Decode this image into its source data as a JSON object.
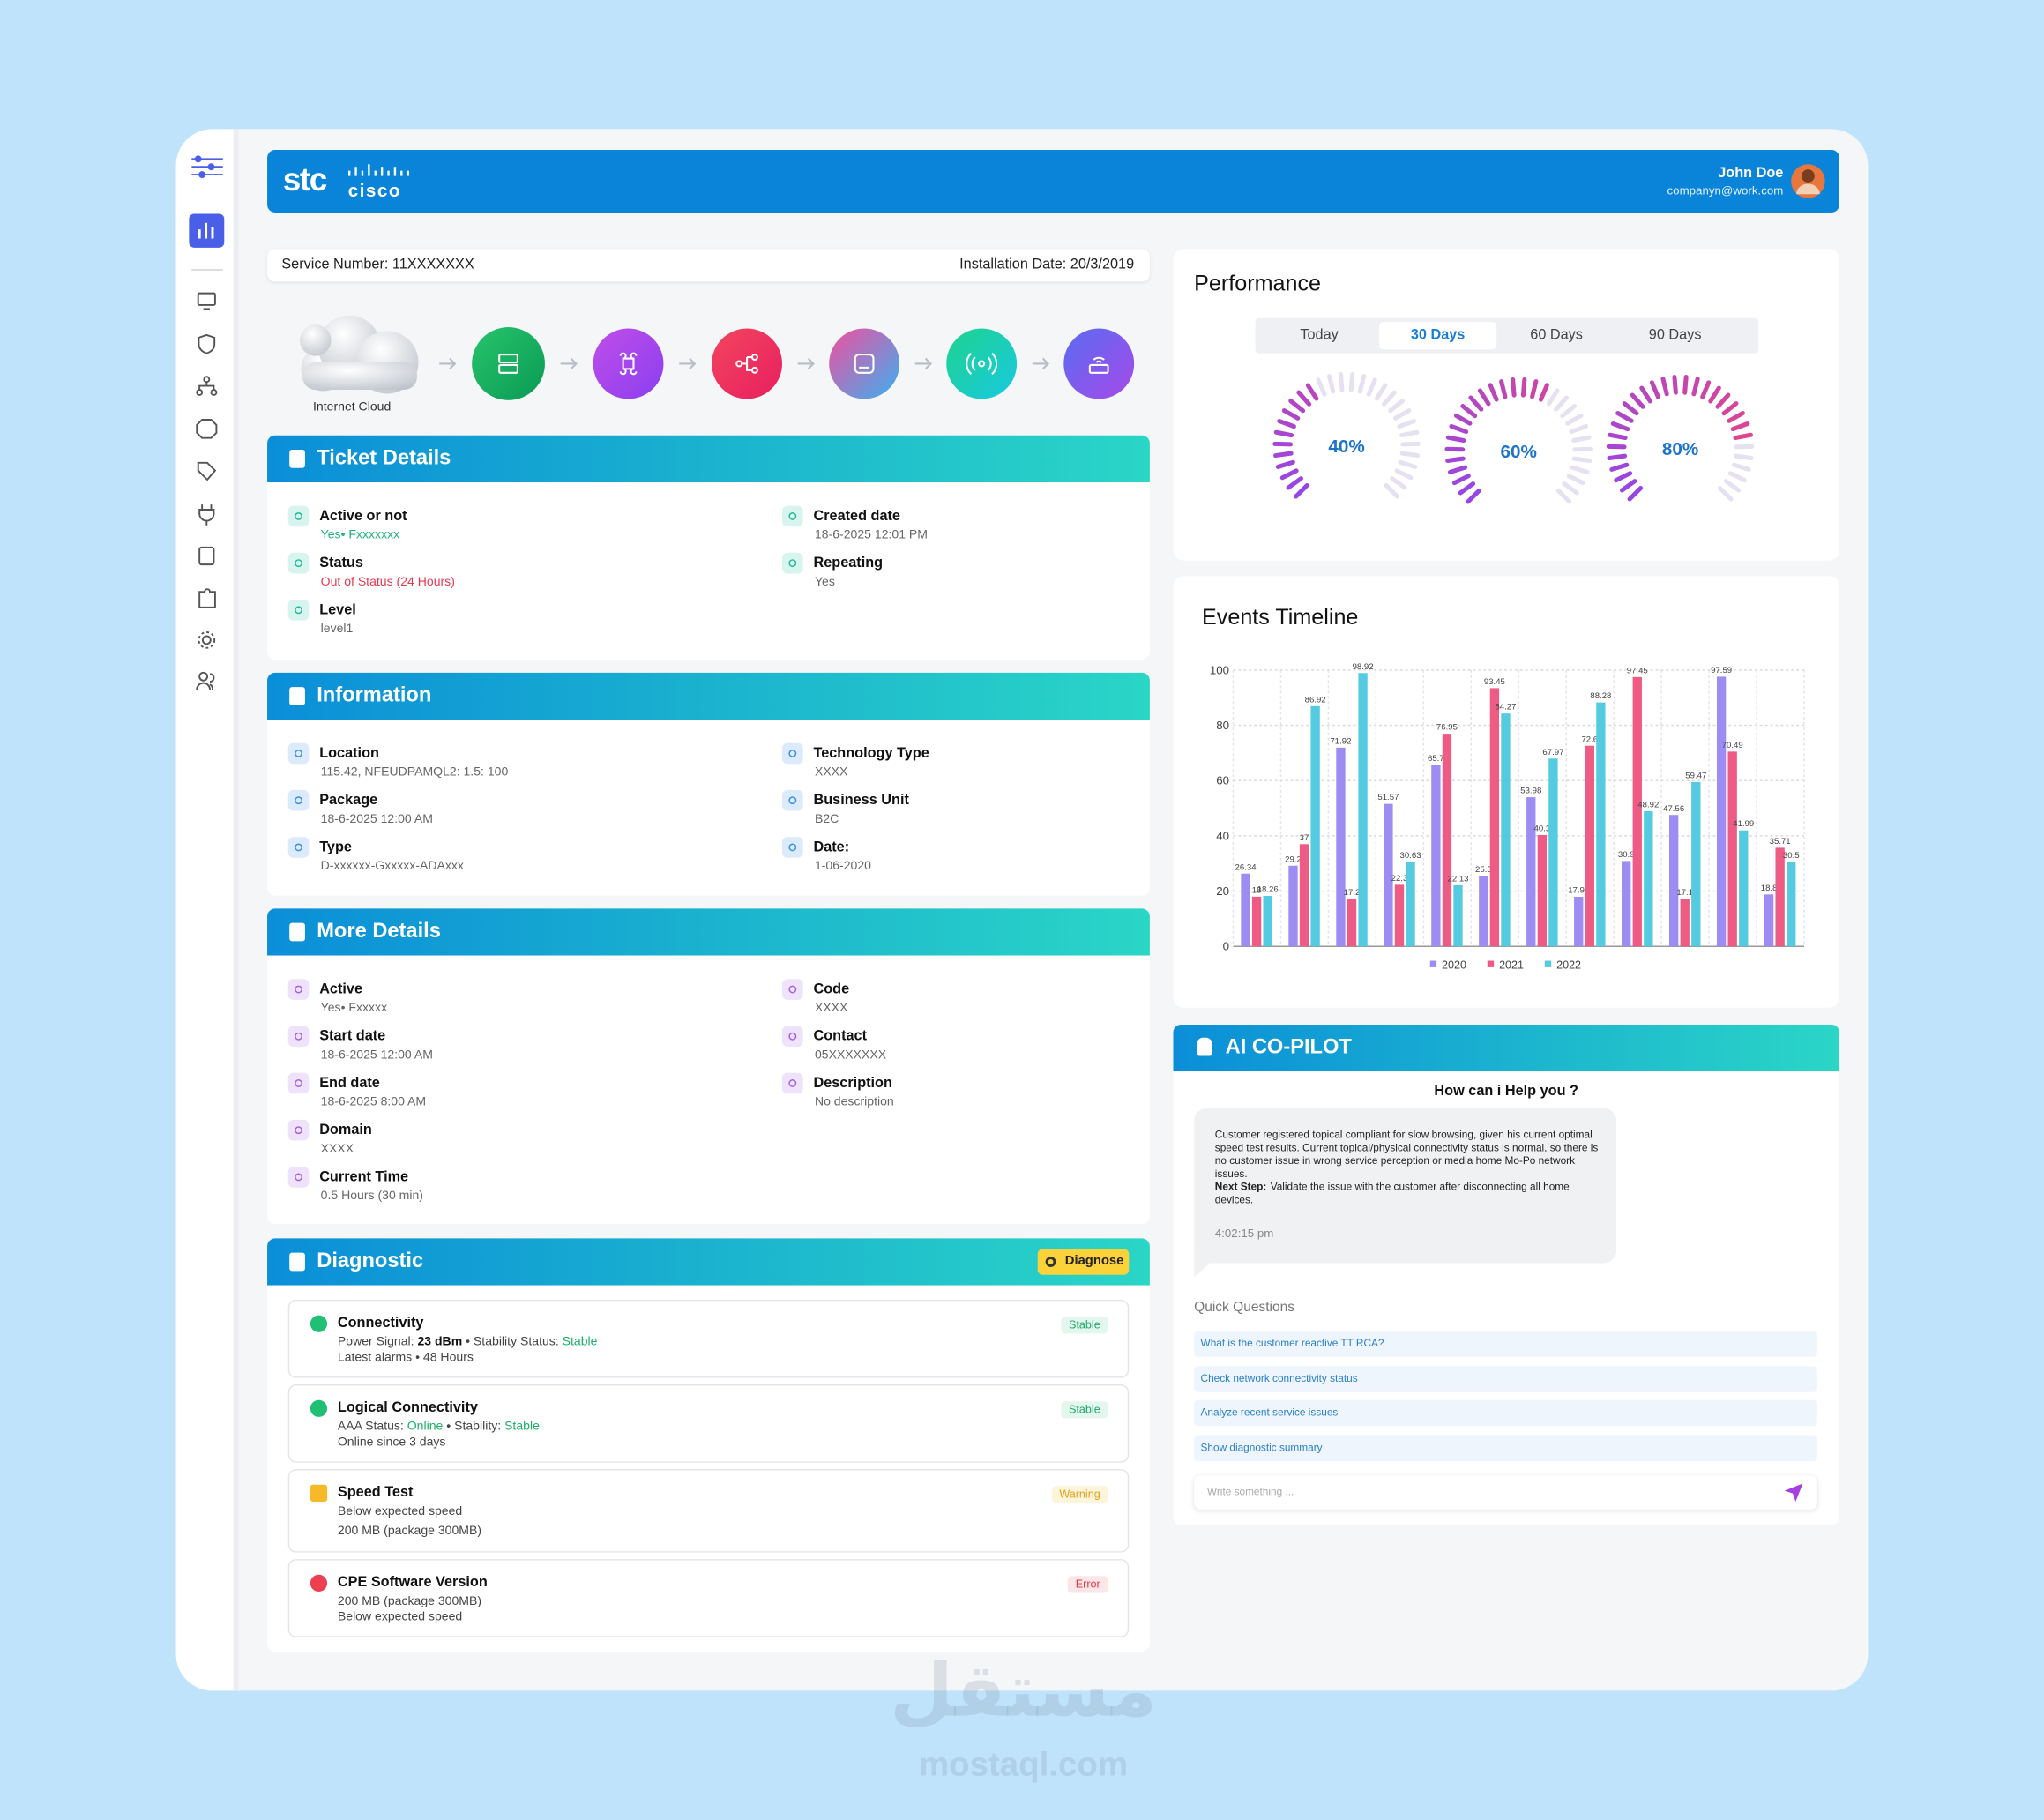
{
  "header": {
    "brand": "stc",
    "partner": "cisco",
    "user_name": "John Doe",
    "user_email": "companyn@work.com"
  },
  "service": {
    "number": "Service Number: 11XXXXXXX",
    "installation": "Installation Date: 20/3/2019"
  },
  "topology": {
    "cloud_label": "Internet Cloud"
  },
  "ticket": {
    "title": "Ticket Details",
    "left": [
      {
        "label": "Active or not",
        "value": "Yes• Fxxxxxxx",
        "color": "#1fb37a"
      },
      {
        "label": "Status",
        "value": "Out of Status (24 Hours)",
        "color": "#e53950"
      },
      {
        "label": "Level",
        "value": "level1"
      }
    ],
    "right": [
      {
        "label": "Created date",
        "value": "18-6-2025 12:01 PM"
      },
      {
        "label": "Repeating",
        "value": "Yes"
      }
    ]
  },
  "information": {
    "title": "Information",
    "left": [
      {
        "label": "Location",
        "value": "115.42, NFEUDPAMQL2: 1.5: 100"
      },
      {
        "label": "Package",
        "value": "18-6-2025 12:00 AM"
      },
      {
        "label": "Type",
        "value": "D-xxxxxx-Gxxxxx-ADAxxx"
      }
    ],
    "right": [
      {
        "label": "Technology Type",
        "value": "XXXX"
      },
      {
        "label": "Business Unit",
        "value": "B2C"
      },
      {
        "label": "Date:",
        "value": "1-06-2020"
      }
    ]
  },
  "more_details": {
    "title": "More Details",
    "left": [
      {
        "label": "Active",
        "value": "Yes• Fxxxxx"
      },
      {
        "label": "Start date",
        "value": "18-6-2025 12:00 AM"
      },
      {
        "label": "End date",
        "value": "18-6-2025 8:00 AM"
      },
      {
        "label": "Domain",
        "value": "XXXX"
      },
      {
        "label": "Current Time",
        "value": "0.5 Hours (30 min)"
      }
    ],
    "right": [
      {
        "label": "Code",
        "value": "XXXX"
      },
      {
        "label": "Contact",
        "value": "05XXXXXXX"
      },
      {
        "label": "Description",
        "value": "No description"
      }
    ]
  },
  "diagnostic": {
    "title": "Diagnostic",
    "action": "Diagnose",
    "items": [
      {
        "title": "Connectivity",
        "status": "Stable",
        "state": "ok",
        "lines": [
          [
            {
              "text": "Power Signal: "
            },
            {
              "text": "23 dBm",
              "style": "bold"
            },
            {
              "text": " • Stability Status: "
            },
            {
              "text": "Stable",
              "style": "green"
            }
          ],
          [
            {
              "text": "Latest alarms • 48 Hours"
            }
          ]
        ]
      },
      {
        "title": "Logical Connectivity",
        "status": "Stable",
        "state": "ok",
        "lines": [
          [
            {
              "text": "AAA Status: "
            },
            {
              "text": "Online",
              "style": "green"
            },
            {
              "text": " • Stability: "
            },
            {
              "text": "Stable",
              "style": "green"
            }
          ],
          [
            {
              "text": "Online since 3 days"
            }
          ]
        ]
      },
      {
        "title": "Speed Test",
        "status": "Warning",
        "state": "warn",
        "lines": [
          [
            {
              "text": "Below expected speed"
            }
          ],
          [
            {
              "text": "200 MB (package 300MB)"
            }
          ]
        ]
      },
      {
        "title": "CPE Software Version",
        "status": "Error",
        "state": "error",
        "lines": [
          [
            {
              "text": "200 MB (package 300MB)"
            }
          ],
          [
            {
              "text": "Below expected speed"
            }
          ]
        ]
      }
    ]
  },
  "performance": {
    "title": "Performance",
    "tabs": [
      "Today",
      "30 Days",
      "60 Days",
      "90 Days"
    ],
    "active_tab": 1,
    "gauges": {
      "values": [
        40,
        60,
        80
      ],
      "value_labels": [
        "40%",
        "60%",
        "80%"
      ]
    }
  },
  "chart_data": {
    "type": "bar",
    "title": "Events Timeline",
    "series": [
      {
        "name": "2020",
        "color": "#9d8cf2",
        "values": [
          26.34,
          29.2,
          71.92,
          51.57,
          65.7,
          25.5,
          53.98,
          17.95,
          30.9,
          47.56,
          97.59,
          18.8
        ]
      },
      {
        "name": "2021",
        "color": "#ee5c86",
        "values": [
          18,
          37,
          17.2,
          22.3,
          76.95,
          93.45,
          40.3,
          72.6,
          97.45,
          17.1,
          70.49,
          35.71
        ]
      },
      {
        "name": "2022",
        "color": "#55cbe2",
        "values": [
          18.26,
          86.92,
          98.92,
          30.63,
          22.13,
          84.27,
          67.97,
          88.28,
          48.92,
          59.47,
          41.99,
          30.5
        ]
      }
    ],
    "ylim": [
      0,
      100
    ],
    "yticks": [
      0,
      20,
      40,
      60,
      80,
      100
    ],
    "grid": true
  },
  "copilot": {
    "title": "AI CO-PILOT",
    "prompt": "How can i Help you ?",
    "message": {
      "text": "Customer registered topical compliant for slow browsing, given his current optimal speed test results. Current topical/physical connectivity status is normal, so there is no customer issue in wrong service perception or media home Mo-Po network issues.",
      "next_label": "Next Step:",
      "next_text": "Validate the issue with the customer after disconnecting all home devices."
    },
    "time": "4:02:15 pm",
    "quick_title": "Quick Questions",
    "questions": [
      "What is the customer reactive TT RCA?",
      "Check network connectivity status",
      "Analyze recent service issues",
      "Show diagnostic summary"
    ],
    "input_placeholder": "Write something ..."
  },
  "watermark": {
    "logo": "مستقل",
    "site": "mostaql.com"
  }
}
